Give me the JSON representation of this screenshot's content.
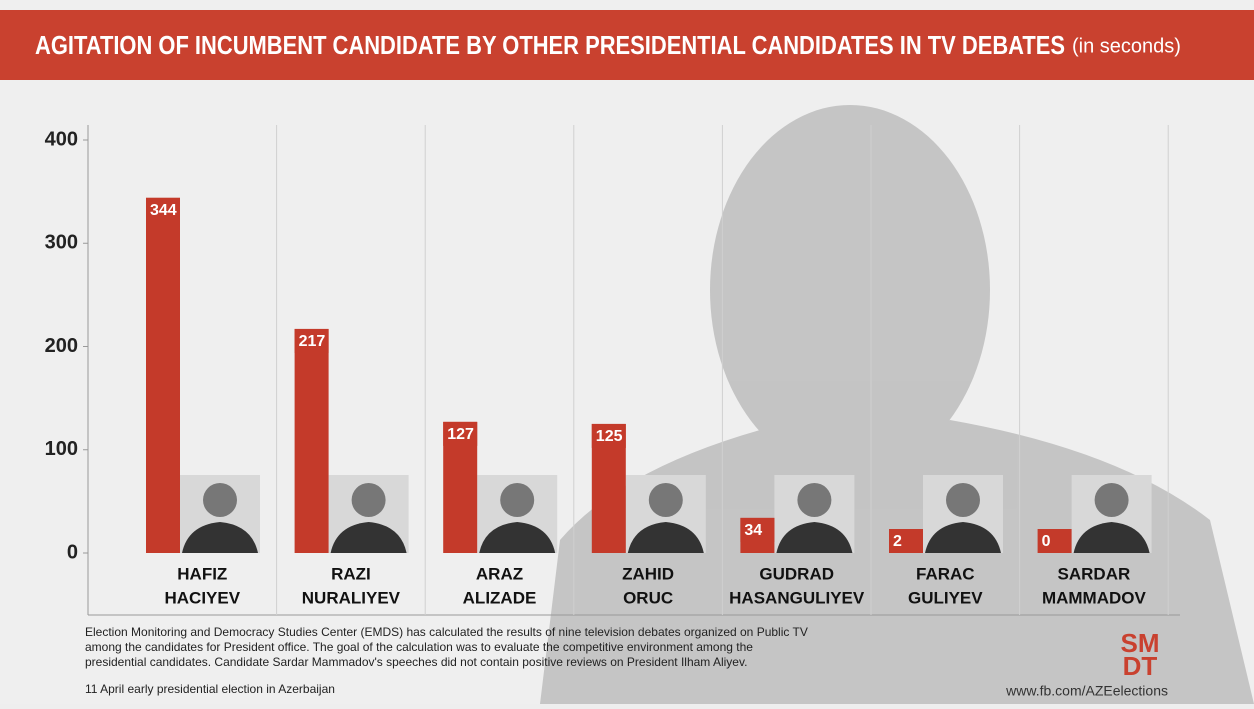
{
  "chart_data": {
    "type": "bar",
    "title": "AGITATION OF INCUMBENT CANDIDATE BY OTHER PRESIDENTIAL CANDIDATES IN TV DEBATES",
    "subtitle": "(in seconds)",
    "categories": [
      [
        "HAFIZ",
        "HACIYEV"
      ],
      [
        "RAZI",
        "NURALIYEV"
      ],
      [
        "ARAZ",
        "ALIZADE"
      ],
      [
        "ZAHID",
        "ORUC"
      ],
      [
        "GUDRAD",
        "HASANGULIYEV"
      ],
      [
        "FARAC",
        "GULIYEV"
      ],
      [
        "SARDAR",
        "MAMMADOV"
      ]
    ],
    "values": [
      344,
      217,
      127,
      125,
      34,
      2,
      0
    ],
    "color": "#c43a2a",
    "ylim": [
      0,
      400
    ],
    "yticks": [
      0,
      100,
      200,
      300,
      400
    ],
    "grid": true,
    "note": [
      "Election Monitoring and Democracy Studies Center (EMDS) has calculated the results of nine television debates organized on Public TV",
      "among the candidates for President office. The goal of the calculation was to evaluate the competitive environment among the",
      "presidential candidates. Candidate Sardar Mammadov's speeches did not contain positive reviews on President Ilham Aliyev."
    ],
    "date_note": "11 April early presidential election in Azerbaijan",
    "url": "www.fb.com/AZEelections",
    "logo": [
      "SM",
      "DT"
    ]
  }
}
